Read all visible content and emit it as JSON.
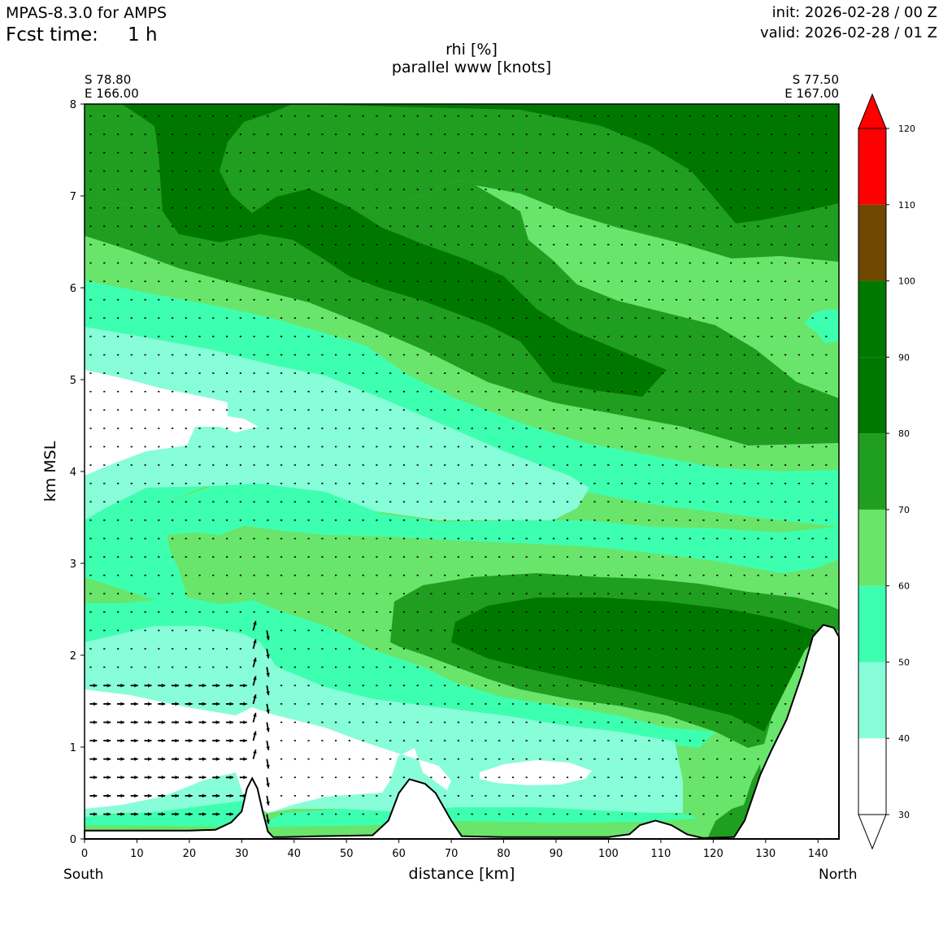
{
  "header": {
    "model": "MPAS-8.3.0 for AMPS",
    "fcst_label": "Fcst time:",
    "fcst_value": "1 h",
    "init": "init: 2026-02-28 / 00 Z",
    "valid": "valid: 2026-02-28 / 01 Z"
  },
  "chart_data": {
    "type": "heatmap",
    "title": "rhi [%]",
    "subtitle": "parallel www [knots]",
    "xlabel": "distance [km]",
    "ylabel": "km MSL",
    "xlim": [
      0,
      144
    ],
    "ylim": [
      0,
      8
    ],
    "x_ticks": [
      "0",
      "10",
      "20",
      "30",
      "40",
      "50",
      "60",
      "70",
      "80",
      "90",
      "100",
      "110",
      "120",
      "130",
      "140"
    ],
    "y_ticks": [
      "0",
      "1",
      "2",
      "3",
      "4",
      "5",
      "6",
      "7",
      "8"
    ],
    "left_endpoint": {
      "lat": "S 78.80",
      "lon": "E 166.00",
      "side": "South"
    },
    "right_endpoint": {
      "lat": "S 77.50",
      "lon": "E 167.00",
      "side": "North"
    },
    "colorbar": {
      "levels": [
        "30",
        "40",
        "50",
        "60",
        "70",
        "80",
        "90",
        "100",
        "110",
        "120"
      ],
      "colors": [
        "#ffffff",
        "#87fdd8",
        "#3dffb0",
        "#69e56b",
        "#209e20",
        "#007800",
        "#007800",
        "#704800",
        "#ff0000"
      ],
      "extend": "both"
    },
    "terrain_km": [
      [
        0,
        0.09
      ],
      [
        10,
        0.09
      ],
      [
        20,
        0.09
      ],
      [
        25,
        0.1
      ],
      [
        28,
        0.18
      ],
      [
        30,
        0.3
      ],
      [
        31,
        0.55
      ],
      [
        32,
        0.66
      ],
      [
        33,
        0.55
      ],
      [
        34,
        0.3
      ],
      [
        35,
        0.08
      ],
      [
        36,
        0.02
      ],
      [
        38,
        0.02
      ],
      [
        45,
        0.03
      ],
      [
        55,
        0.04
      ],
      [
        58,
        0.2
      ],
      [
        60,
        0.5
      ],
      [
        62,
        0.65
      ],
      [
        65,
        0.6
      ],
      [
        67,
        0.5
      ],
      [
        70,
        0.2
      ],
      [
        72,
        0.03
      ],
      [
        80,
        0.02
      ],
      [
        100,
        0.02
      ],
      [
        104,
        0.05
      ],
      [
        106,
        0.15
      ],
      [
        109,
        0.2
      ],
      [
        112,
        0.15
      ],
      [
        115,
        0.05
      ],
      [
        118,
        0.01
      ],
      [
        124,
        0.02
      ],
      [
        126,
        0.2
      ],
      [
        129,
        0.7
      ],
      [
        131,
        0.95
      ],
      [
        134,
        1.3
      ],
      [
        137,
        1.8
      ],
      [
        139,
        2.2
      ],
      [
        141,
        2.33
      ],
      [
        143,
        2.3
      ],
      [
        144,
        2.2
      ]
    ],
    "rhi_bands_km": [
      {
        "level": "40-50",
        "region": "0-3.95 km left, upper-left wedge 4-5.6 km"
      },
      {
        "level": "<40",
        "region": "0-1.6 km and 4.2-5.1 km left side"
      },
      {
        "level": "70-100",
        "region": "mid-level maximum 60-140 km, 1.4-2.9 km; upper layer 6-8 km"
      }
    ],
    "wind_note": "parallel winds up to ~20 knots near 30-36 km"
  }
}
